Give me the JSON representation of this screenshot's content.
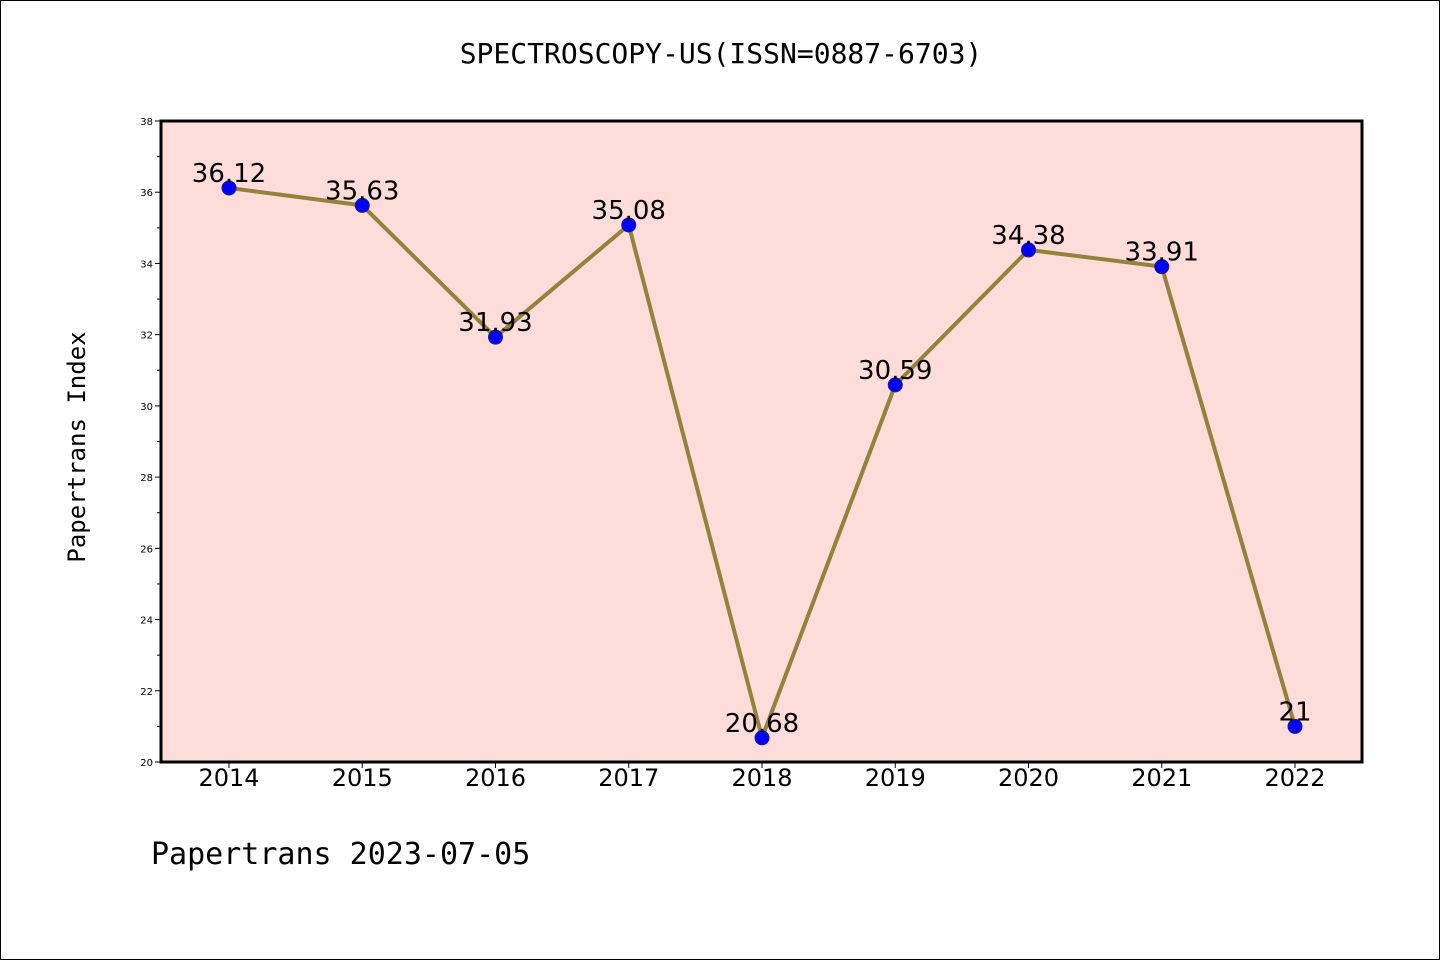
{
  "title": "SPECTROSCOPY-US(ISSN=0887-6703)",
  "footer": "Papertrans 2023-07-05",
  "chart_data": {
    "type": "line",
    "title": "SPECTROSCOPY-US(ISSN=0887-6703)",
    "xlabel": "",
    "ylabel": "Papertrans Index",
    "categories": [
      "2014",
      "2015",
      "2016",
      "2017",
      "2018",
      "2019",
      "2020",
      "2021",
      "2022"
    ],
    "series": [
      {
        "values": [
          36.12,
          35.63,
          31.93,
          35.08,
          20.68,
          30.59,
          34.38,
          33.91,
          21
        ],
        "labels": [
          "36.12",
          "35.63",
          "31.93",
          "35.08",
          "20.68",
          "30.59",
          "34.38",
          "33.91",
          "21"
        ]
      }
    ],
    "ylim": [
      20,
      38
    ],
    "yticks": [
      20,
      22,
      24,
      26,
      28,
      30,
      32,
      34,
      36,
      38
    ],
    "grid": false,
    "colors": {
      "plot_background": "#fddcd9",
      "line": "#94813a",
      "marker": "#0000ff"
    }
  }
}
